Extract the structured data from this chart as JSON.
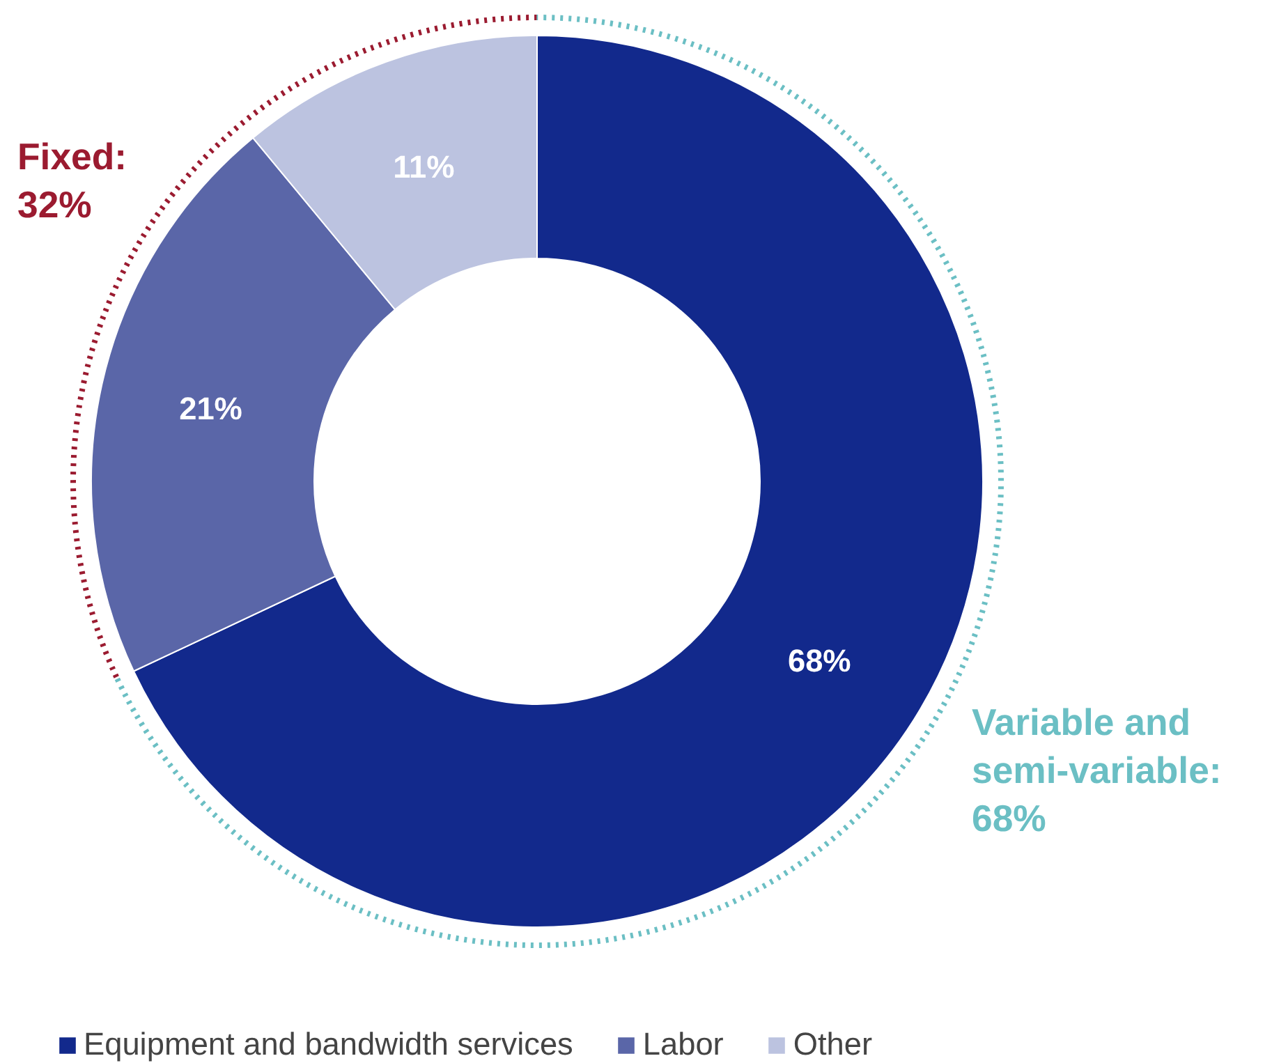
{
  "chart_data": {
    "type": "donut",
    "categories": [
      "Equipment and bandwidth services",
      "Labor",
      "Other"
    ],
    "values": [
      68,
      21,
      11
    ],
    "colors": [
      "#12298c",
      "#5a66a8",
      "#bcc3e0"
    ],
    "value_labels": [
      "68%",
      "21%",
      "11%"
    ],
    "legend": "bottom",
    "annotations": [
      "Fixed:\n32%",
      "Variable and\nsemi-variable:\n68%"
    ]
  }
}
